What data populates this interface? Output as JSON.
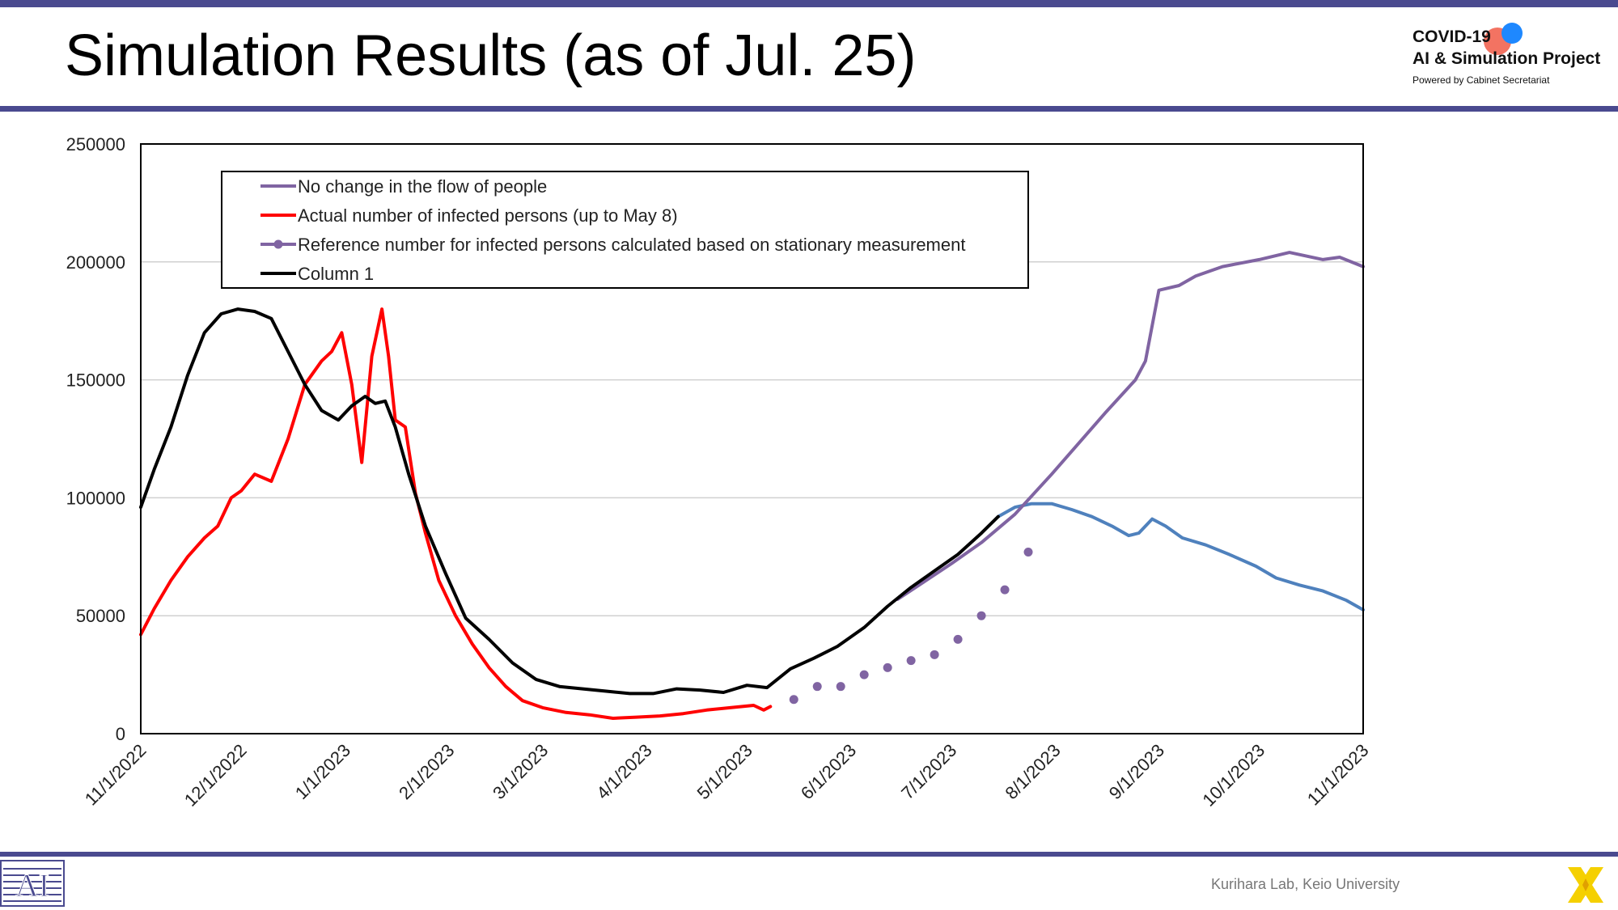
{
  "header": {
    "title": "Simulation Results (as of Jul. 25)",
    "logo_line1": "COVID-19",
    "logo_line2": "AI & Simulation Project",
    "logo_line3": "Powered by Cabinet Secretariat"
  },
  "footer": {
    "credit": "Kurihara Lab, Keio University"
  },
  "colors": {
    "frame": "#4a4a8f",
    "purple": "#8064a2",
    "red": "#ff0000",
    "black": "#000000",
    "blue": "#4f81bd",
    "logo_red": "#f26c5a",
    "logo_blue": "#1e88ff",
    "x_logo": "#f5d000"
  },
  "icons": [
    "keio-ai-logo-icon",
    "x-logo-icon"
  ],
  "chart_data": {
    "type": "line",
    "title": "",
    "xlabel": "",
    "ylabel": "",
    "xlim": [
      "2022-11-01",
      "2023-11-01"
    ],
    "ylim": [
      0,
      250000
    ],
    "yticks": [
      0,
      50000,
      100000,
      150000,
      200000,
      250000
    ],
    "ytick_labels": [
      "0",
      "50000",
      "100000",
      "150000",
      "200000",
      "250000"
    ],
    "xticks": [
      "2022-11-01",
      "2022-12-01",
      "2023-01-01",
      "2023-02-01",
      "2023-03-01",
      "2023-04-01",
      "2023-05-01",
      "2023-06-01",
      "2023-07-01",
      "2023-08-01",
      "2023-09-01",
      "2023-10-01",
      "2023-11-01"
    ],
    "xtick_labels": [
      "11/1/2022",
      "12/1/2022",
      "1/1/2023",
      "2/1/2023",
      "3/1/2023",
      "4/1/2023",
      "5/1/2023",
      "6/1/2023",
      "7/1/2023",
      "8/1/2023",
      "9/1/2023",
      "10/1/2023",
      "11/1/2023"
    ],
    "grid": "horizontal",
    "legend_position": "top-left",
    "series": [
      {
        "name": "No change in the flow of people",
        "color": "#8064a2",
        "style": "line",
        "x": [
          "2023-06-15",
          "2023-07-01",
          "2023-07-10",
          "2023-07-20",
          "2023-07-31",
          "2023-08-08",
          "2023-08-16",
          "2023-08-25",
          "2023-08-28",
          "2023-09-01",
          "2023-09-07",
          "2023-09-12",
          "2023-09-20",
          "2023-10-01",
          "2023-10-10",
          "2023-10-20",
          "2023-10-25",
          "2023-11-01"
        ],
        "y": [
          57000,
          72000,
          81000,
          93000,
          110000,
          123000,
          136000,
          150000,
          158000,
          188000,
          190000,
          194000,
          198000,
          201000,
          204000,
          201000,
          202000,
          198000
        ]
      },
      {
        "name": "Actual number of infected persons (up to May 8)",
        "color": "#ff0000",
        "style": "line",
        "x": [
          "2022-11-01",
          "2022-11-05",
          "2022-11-10",
          "2022-11-15",
          "2022-11-20",
          "2022-11-24",
          "2022-11-28",
          "2022-12-01",
          "2022-12-05",
          "2022-12-10",
          "2022-12-15",
          "2022-12-20",
          "2022-12-25",
          "2022-12-28",
          "2022-12-31",
          "2023-01-03",
          "2023-01-06",
          "2023-01-09",
          "2023-01-12",
          "2023-01-14",
          "2023-01-16",
          "2023-01-19",
          "2023-01-22",
          "2023-01-25",
          "2023-01-29",
          "2023-02-03",
          "2023-02-08",
          "2023-02-13",
          "2023-02-18",
          "2023-02-23",
          "2023-03-01",
          "2023-03-08",
          "2023-03-15",
          "2023-03-22",
          "2023-03-29",
          "2023-04-05",
          "2023-04-12",
          "2023-04-19",
          "2023-04-26",
          "2023-05-03",
          "2023-05-06",
          "2023-05-08"
        ],
        "y": [
          42000,
          53000,
          65000,
          75000,
          83000,
          88000,
          100000,
          103000,
          110000,
          107000,
          125000,
          148000,
          158000,
          162000,
          170000,
          148000,
          115000,
          160000,
          180000,
          160000,
          133000,
          130000,
          102000,
          85000,
          65000,
          50000,
          38000,
          28000,
          20000,
          14000,
          11000,
          9000,
          8000,
          6500,
          7000,
          7500,
          8500,
          10000,
          11000,
          12000,
          10000,
          11500
        ]
      },
      {
        "name": "Reference number for infected persons calculated based on stationary measurement",
        "color": "#8064a2",
        "style": "markers",
        "x": [
          "2023-05-15",
          "2023-05-22",
          "2023-05-29",
          "2023-06-05",
          "2023-06-12",
          "2023-06-19",
          "2023-06-26",
          "2023-07-03",
          "2023-07-10",
          "2023-07-17",
          "2023-07-24"
        ],
        "y": [
          14500,
          20000,
          20000,
          25000,
          28000,
          31000,
          33500,
          40000,
          50000,
          61000,
          77000
        ]
      },
      {
        "name": "Column 1",
        "color": "#000000",
        "style": "line",
        "x": [
          "2022-11-01",
          "2022-11-05",
          "2022-11-10",
          "2022-11-15",
          "2022-11-20",
          "2022-11-25",
          "2022-11-30",
          "2022-12-05",
          "2022-12-10",
          "2022-12-15",
          "2022-12-20",
          "2022-12-25",
          "2022-12-30",
          "2023-01-03",
          "2023-01-07",
          "2023-01-10",
          "2023-01-13",
          "2023-01-16",
          "2023-01-20",
          "2023-01-25",
          "2023-01-31",
          "2023-02-06",
          "2023-02-13",
          "2023-02-20",
          "2023-02-27",
          "2023-03-06",
          "2023-03-13",
          "2023-03-20",
          "2023-03-27",
          "2023-04-03",
          "2023-04-10",
          "2023-04-17",
          "2023-04-24",
          "2023-05-01",
          "2023-05-07",
          "2023-05-14",
          "2023-05-21",
          "2023-05-28",
          "2023-06-05",
          "2023-06-12",
          "2023-06-19",
          "2023-06-26",
          "2023-07-03",
          "2023-07-10",
          "2023-07-15"
        ],
        "y": [
          96000,
          112000,
          130000,
          152000,
          170000,
          178000,
          180000,
          179000,
          176000,
          162000,
          148000,
          137000,
          133000,
          139000,
          143000,
          140000,
          141000,
          130000,
          110000,
          88000,
          68000,
          49000,
          40000,
          30000,
          23000,
          20000,
          19000,
          18000,
          17000,
          17000,
          19000,
          18500,
          17500,
          20500,
          19500,
          27500,
          32000,
          37000,
          45000,
          54000,
          62000,
          69000,
          76000,
          85000,
          92000
        ]
      },
      {
        "name": "",
        "color": "#4f81bd",
        "style": "line",
        "x": [
          "2023-07-15",
          "2023-07-20",
          "2023-07-25",
          "2023-07-31",
          "2023-08-06",
          "2023-08-12",
          "2023-08-18",
          "2023-08-23",
          "2023-08-26",
          "2023-08-30",
          "2023-09-03",
          "2023-09-08",
          "2023-09-15",
          "2023-09-22",
          "2023-09-30",
          "2023-10-06",
          "2023-10-13",
          "2023-10-20",
          "2023-10-27",
          "2023-11-01"
        ],
        "y": [
          92000,
          96000,
          97500,
          97500,
          95000,
          92000,
          88000,
          84000,
          85000,
          91000,
          88000,
          83000,
          80000,
          76000,
          71000,
          66000,
          63000,
          60500,
          56500,
          52500
        ]
      }
    ]
  }
}
